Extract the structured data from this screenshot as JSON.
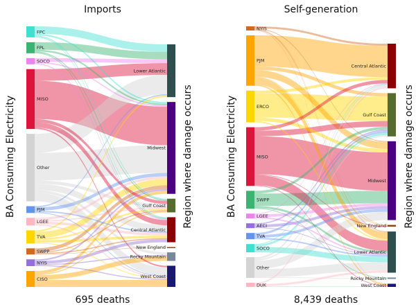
{
  "chart_data": [
    {
      "type": "sankey",
      "title": "Imports",
      "footer": "695 deaths",
      "ylabel_left": "BA Consuming Electricity",
      "ylabel_right": "Region where damage occurs",
      "value_unit": "approx. percent of deaths",
      "sources": [
        {
          "name": "FPC",
          "color": "#40e0d0"
        },
        {
          "name": "FPL",
          "color": "#3cb371"
        },
        {
          "name": "SOCO",
          "color": "#ee82ee"
        },
        {
          "name": "MISO",
          "color": "#dc143c"
        },
        {
          "name": "Other",
          "color": "#d3d3d3"
        },
        {
          "name": "PJM",
          "color": "#6495ed"
        },
        {
          "name": "LGEE",
          "color": "#ffb6c1"
        },
        {
          "name": "TVA",
          "color": "#ffd700"
        },
        {
          "name": "SWPP",
          "color": "#d2691e"
        },
        {
          "name": "NYIS",
          "color": "#9370db"
        },
        {
          "name": "CISO",
          "color": "#ffa500"
        }
      ],
      "targets": [
        {
          "name": "Lower Atlantic",
          "color": "#2f4f4f"
        },
        {
          "name": "Midwest",
          "color": "#4b0082"
        },
        {
          "name": "Gulf Coast",
          "color": "#556b2f"
        },
        {
          "name": "Central Atlantic",
          "color": "#8b0000"
        },
        {
          "name": "New England",
          "color": "#8b4513"
        },
        {
          "name": "Rocky Mountain",
          "color": "#778899"
        },
        {
          "name": "West Coast",
          "color": "#191970"
        }
      ],
      "links": [
        [
          "FPC",
          "Lower Atlantic",
          3.5
        ],
        [
          "FPC",
          "Midwest",
          0.8
        ],
        [
          "FPC",
          "Gulf Coast",
          0.5
        ],
        [
          "FPC",
          "Central Atlantic",
          0.4
        ],
        [
          "FPL",
          "Lower Atlantic",
          3.5
        ],
        [
          "FPL",
          "Midwest",
          0.8
        ],
        [
          "FPL",
          "Gulf Coast",
          0.5
        ],
        [
          "FPL",
          "Central Atlantic",
          0.4
        ],
        [
          "SOCO",
          "Lower Atlantic",
          1.8
        ],
        [
          "SOCO",
          "Midwest",
          0.6
        ],
        [
          "SOCO",
          "Central Atlantic",
          0.5
        ],
        [
          "MISO",
          "Lower Atlantic",
          5.5
        ],
        [
          "MISO",
          "Midwest",
          18
        ],
        [
          "MISO",
          "Gulf Coast",
          1.5
        ],
        [
          "MISO",
          "Central Atlantic",
          2.5
        ],
        [
          "MISO",
          "West Coast",
          0.7
        ],
        [
          "Other",
          "Lower Atlantic",
          9
        ],
        [
          "Other",
          "Midwest",
          13
        ],
        [
          "Other",
          "Gulf Coast",
          1.5
        ],
        [
          "Other",
          "Central Atlantic",
          3
        ],
        [
          "Other",
          "Rocky Mountain",
          1.3
        ],
        [
          "Other",
          "West Coast",
          4
        ],
        [
          "PJM",
          "Lower Atlantic",
          0.6
        ],
        [
          "PJM",
          "Midwest",
          1.6
        ],
        [
          "PJM",
          "Central Atlantic",
          0.6
        ],
        [
          "PJM",
          "West Coast",
          0.4
        ],
        [
          "LGEE",
          "Midwest",
          1.2
        ],
        [
          "LGEE",
          "Gulf Coast",
          0.6
        ],
        [
          "LGEE",
          "Central Atlantic",
          1.2
        ],
        [
          "LGEE",
          "West Coast",
          0.6
        ],
        [
          "TVA",
          "Lower Atlantic",
          0.8
        ],
        [
          "TVA",
          "Midwest",
          3
        ],
        [
          "TVA",
          "Gulf Coast",
          0.8
        ],
        [
          "TVA",
          "Central Atlantic",
          1.2
        ],
        [
          "TVA",
          "West Coast",
          0.4
        ],
        [
          "SWPP",
          "Midwest",
          1.7
        ],
        [
          "SWPP",
          "Gulf Coast",
          0.5
        ],
        [
          "SWPP",
          "New England",
          0.2
        ],
        [
          "SWPP",
          "Central Atlantic",
          0.5
        ],
        [
          "NYIS",
          "Midwest",
          0.8
        ],
        [
          "NYIS",
          "Central Atlantic",
          1.4
        ],
        [
          "NYIS",
          "Rocky Mountain",
          0.5
        ],
        [
          "NYIS",
          "West Coast",
          0.5
        ],
        [
          "CISO",
          "Midwest",
          1.5
        ],
        [
          "CISO",
          "Gulf Coast",
          0.5
        ],
        [
          "CISO",
          "Rocky Mountain",
          2.2
        ],
        [
          "CISO",
          "West Coast",
          3.3
        ]
      ]
    },
    {
      "type": "sankey",
      "title": "Self-generation",
      "footer": "8,439 deaths",
      "ylabel_left": "BA Consuming Electricity",
      "ylabel_right": "Region where damage occurs",
      "value_unit": "approx. relative share of deaths",
      "sources": [
        {
          "name": "NYIS",
          "color": "#d2691e"
        },
        {
          "name": "PJM",
          "color": "#ffa500"
        },
        {
          "name": "ERCO",
          "color": "#ffd700"
        },
        {
          "name": "MISO",
          "color": "#dc143c"
        },
        {
          "name": "SWPP",
          "color": "#3cb371"
        },
        {
          "name": "LGEE",
          "color": "#ee82ee"
        },
        {
          "name": "AECI",
          "color": "#9370db"
        },
        {
          "name": "TVA",
          "color": "#6495ed"
        },
        {
          "name": "SOCO",
          "color": "#40e0d0"
        },
        {
          "name": "Other",
          "color": "#d3d3d3"
        },
        {
          "name": "DUK",
          "color": "#ffb6c1"
        }
      ],
      "targets": [
        {
          "name": "Central Atlantic",
          "color": "#8b0000"
        },
        {
          "name": "Gulf Coast",
          "color": "#556b2f"
        },
        {
          "name": "Midwest",
          "color": "#4b0082"
        },
        {
          "name": "New England",
          "color": "#8b4513"
        },
        {
          "name": "Lower Atlantic",
          "color": "#2f4f4f"
        },
        {
          "name": "Rocky Mountain",
          "color": "#778899"
        },
        {
          "name": "West Coast",
          "color": "#191970"
        }
      ],
      "links": [
        [
          "NYIS",
          "Central Atlantic",
          3
        ],
        [
          "NYIS",
          "Midwest",
          1
        ],
        [
          "NYIS",
          "Lower Atlantic",
          1
        ],
        [
          "NYIS",
          "New England",
          0.5
        ],
        [
          "NYIS",
          "West Coast",
          0.5
        ],
        [
          "PJM",
          "Central Atlantic",
          45
        ],
        [
          "PJM",
          "Gulf Coast",
          5
        ],
        [
          "PJM",
          "Midwest",
          10
        ],
        [
          "PJM",
          "Lower Atlantic",
          10
        ],
        [
          "PJM",
          "New England",
          1
        ],
        [
          "PJM",
          "West Coast",
          2
        ],
        [
          "ERCO",
          "Gulf Coast",
          35
        ],
        [
          "ERCO",
          "Central Atlantic",
          4
        ],
        [
          "ERCO",
          "Midwest",
          5
        ],
        [
          "ERCO",
          "Lower Atlantic",
          2
        ],
        [
          "MISO",
          "Central Atlantic",
          5
        ],
        [
          "MISO",
          "Gulf Coast",
          8
        ],
        [
          "MISO",
          "Midwest",
          55
        ],
        [
          "MISO",
          "Lower Atlantic",
          15
        ],
        [
          "MISO",
          "New England",
          1
        ],
        [
          "MISO",
          "West Coast",
          1
        ],
        [
          "SWPP",
          "Gulf Coast",
          4
        ],
        [
          "SWPP",
          "Midwest",
          18
        ],
        [
          "SWPP",
          "Lower Atlantic",
          3
        ],
        [
          "SWPP",
          "Rocky Mountain",
          1
        ],
        [
          "LGEE",
          "Midwest",
          4
        ],
        [
          "LGEE",
          "Lower Atlantic",
          2
        ],
        [
          "LGEE",
          "Central Atlantic",
          1
        ],
        [
          "AECI",
          "Midwest",
          4
        ],
        [
          "AECI",
          "Gulf Coast",
          2
        ],
        [
          "AECI",
          "Lower Atlantic",
          1
        ],
        [
          "TVA",
          "Midwest",
          4
        ],
        [
          "TVA",
          "Gulf Coast",
          3
        ],
        [
          "TVA",
          "Lower Atlantic",
          2
        ],
        [
          "SOCO",
          "Lower Atlantic",
          8
        ],
        [
          "SOCO",
          "Gulf Coast",
          3
        ],
        [
          "SOCO",
          "Central Atlantic",
          1
        ],
        [
          "Other",
          "Midwest",
          12
        ],
        [
          "Other",
          "Lower Atlantic",
          12
        ],
        [
          "Other",
          "Central Atlantic",
          3
        ],
        [
          "Other",
          "Gulf Coast",
          2
        ],
        [
          "Other",
          "Rocky Mountain",
          1
        ],
        [
          "DUK",
          "Lower Atlantic",
          3
        ],
        [
          "DUK",
          "Central Atlantic",
          2
        ],
        [
          "DUK",
          "West Coast",
          1
        ]
      ]
    }
  ]
}
